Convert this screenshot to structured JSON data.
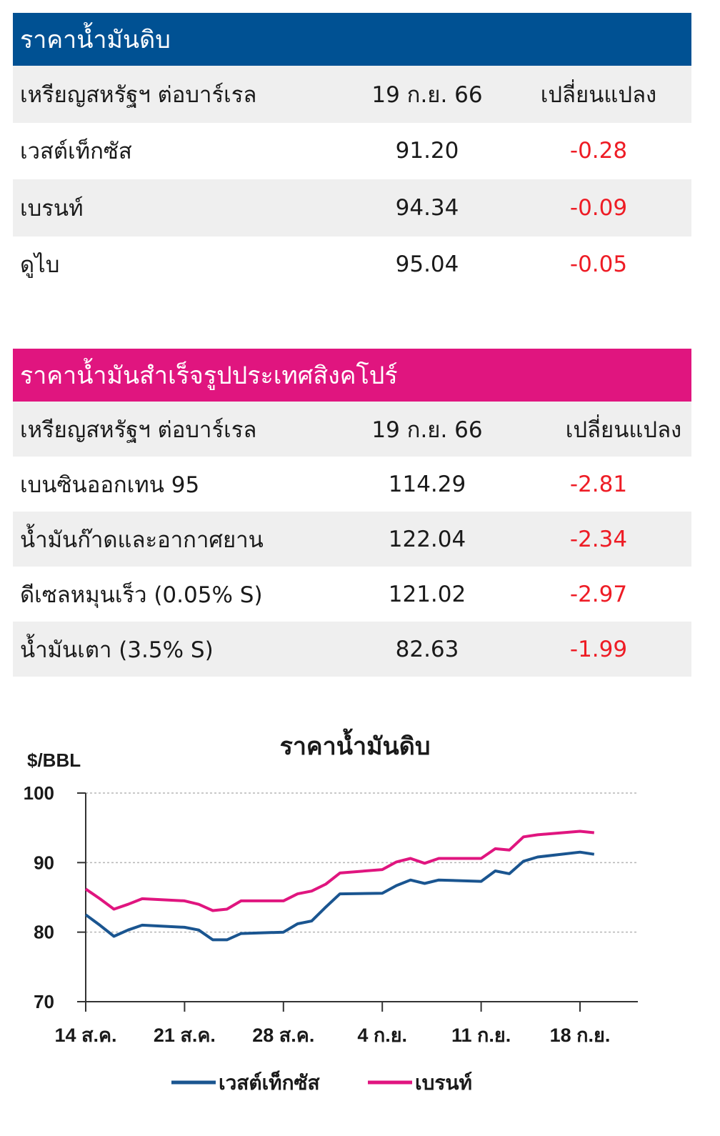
{
  "crude": {
    "title": "ราคาน้ำมันดิบ",
    "header": [
      "เหรียญสหรัฐฯ ต่อบาร์เรล",
      "19 ก.ย. 66",
      "เปลี่ยนแปลง"
    ],
    "rows": [
      {
        "name": "เวสต์เท็กซัส",
        "price": "91.20",
        "change": "-0.28"
      },
      {
        "name": "เบรนท์",
        "price": "94.34",
        "change": "-0.09"
      },
      {
        "name": "ดูไบ",
        "price": "95.04",
        "change": "-0.05"
      }
    ]
  },
  "refined": {
    "title": "ราคาน้ำมันสำเร็จรูปประเทศสิงคโปร์",
    "header": [
      "เหรียญสหรัฐฯ ต่อบาร์เรล",
      "19 ก.ย. 66",
      "เปลี่ยนแปลง"
    ],
    "rows": [
      {
        "name": "เบนซินออกเทน 95",
        "price": "114.29",
        "change": "-2.81"
      },
      {
        "name": "น้ำมันก๊าดและอากาศยาน",
        "price": "122.04",
        "change": "-2.34"
      },
      {
        "name": "ดีเซลหมุนเร็ว (0.05% S)",
        "price": "121.02",
        "change": "-2.97"
      },
      {
        "name": "น้ำมันเตา (3.5% S)",
        "price": "82.63",
        "change": "-1.99"
      }
    ]
  },
  "colors": {
    "crude_header": "#005193",
    "refined_header": "#e0157f",
    "negative": "#ee1c25",
    "wti": "#1a5590",
    "brent": "#e0157f"
  },
  "chart_data": {
    "type": "line",
    "title": "ราคาน้ำมันดิบ",
    "ylabel": "$/BBL",
    "ylim": [
      70,
      100
    ],
    "yticks": [
      70,
      80,
      90,
      100
    ],
    "xticks": [
      "14 ส.ค.",
      "21 ส.ค.",
      "28 ส.ค.",
      "4 ก.ย.",
      "11 ก.ย.",
      "18 ก.ย."
    ],
    "grid": "horizontal dotted",
    "legend": "bottom",
    "x": [
      "2023-08-14",
      "2023-08-15",
      "2023-08-16",
      "2023-08-17",
      "2023-08-18",
      "2023-08-21",
      "2023-08-22",
      "2023-08-23",
      "2023-08-24",
      "2023-08-25",
      "2023-08-28",
      "2023-08-29",
      "2023-08-30",
      "2023-08-31",
      "2023-09-01",
      "2023-09-04",
      "2023-09-05",
      "2023-09-06",
      "2023-09-07",
      "2023-09-08",
      "2023-09-11",
      "2023-09-12",
      "2023-09-13",
      "2023-09-14",
      "2023-09-15",
      "2023-09-18",
      "2023-09-19"
    ],
    "series": [
      {
        "name": "เวสต์เท็กซัส",
        "values": [
          82.5,
          81.0,
          79.4,
          80.3,
          81.0,
          80.7,
          80.3,
          78.9,
          78.9,
          79.8,
          80.0,
          81.2,
          81.6,
          83.6,
          85.5,
          85.6,
          86.7,
          87.5,
          87.0,
          87.5,
          87.3,
          88.8,
          88.4,
          90.2,
          90.8,
          91.5,
          91.2
        ]
      },
      {
        "name": "เบรนท์",
        "values": [
          86.2,
          84.8,
          83.3,
          84.0,
          84.8,
          84.5,
          84.0,
          83.1,
          83.3,
          84.5,
          84.5,
          85.5,
          85.9,
          86.9,
          88.5,
          89.0,
          90.1,
          90.6,
          89.9,
          90.6,
          90.6,
          92.0,
          91.8,
          93.7,
          94.0,
          94.5,
          94.3
        ]
      }
    ]
  }
}
